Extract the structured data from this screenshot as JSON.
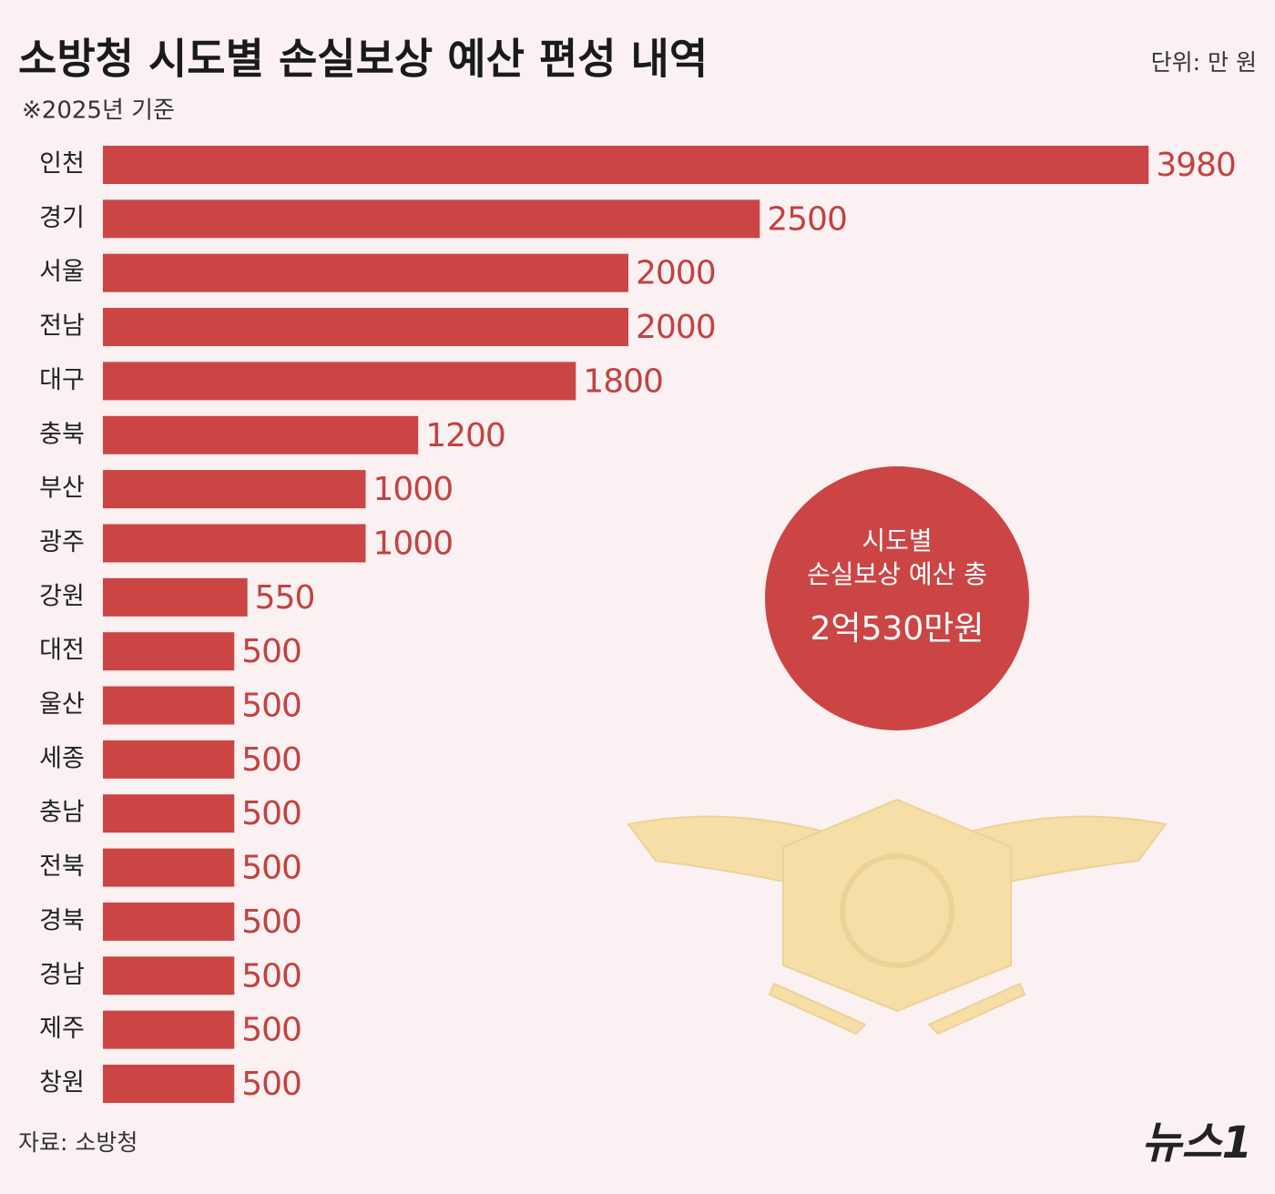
{
  "chart_data": {
    "type": "bar",
    "orientation": "horizontal",
    "title": "소방청 시도별 손실보상 예산 편성 내역",
    "subtitle": "※2025년 기준",
    "unit": "단위: 만 원",
    "source": "자료: 소방청",
    "brand": "뉴스1",
    "annotation": [
      "시도별",
      "손실보상 예산 총",
      "2억530만원"
    ],
    "categories": [
      "인천",
      "경기",
      "서울",
      "전남",
      "대구",
      "충북",
      "부산",
      "광주",
      "강원",
      "대전",
      "울산",
      "세종",
      "충남",
      "전북",
      "경북",
      "경남",
      "제주",
      "창원"
    ],
    "values": [
      3980,
      2500,
      2000,
      2000,
      1800,
      1200,
      1000,
      1000,
      550,
      500,
      500,
      500,
      500,
      500,
      500,
      500,
      500,
      500
    ],
    "color": "#cc4545",
    "xlim": [
      0,
      4000
    ]
  }
}
